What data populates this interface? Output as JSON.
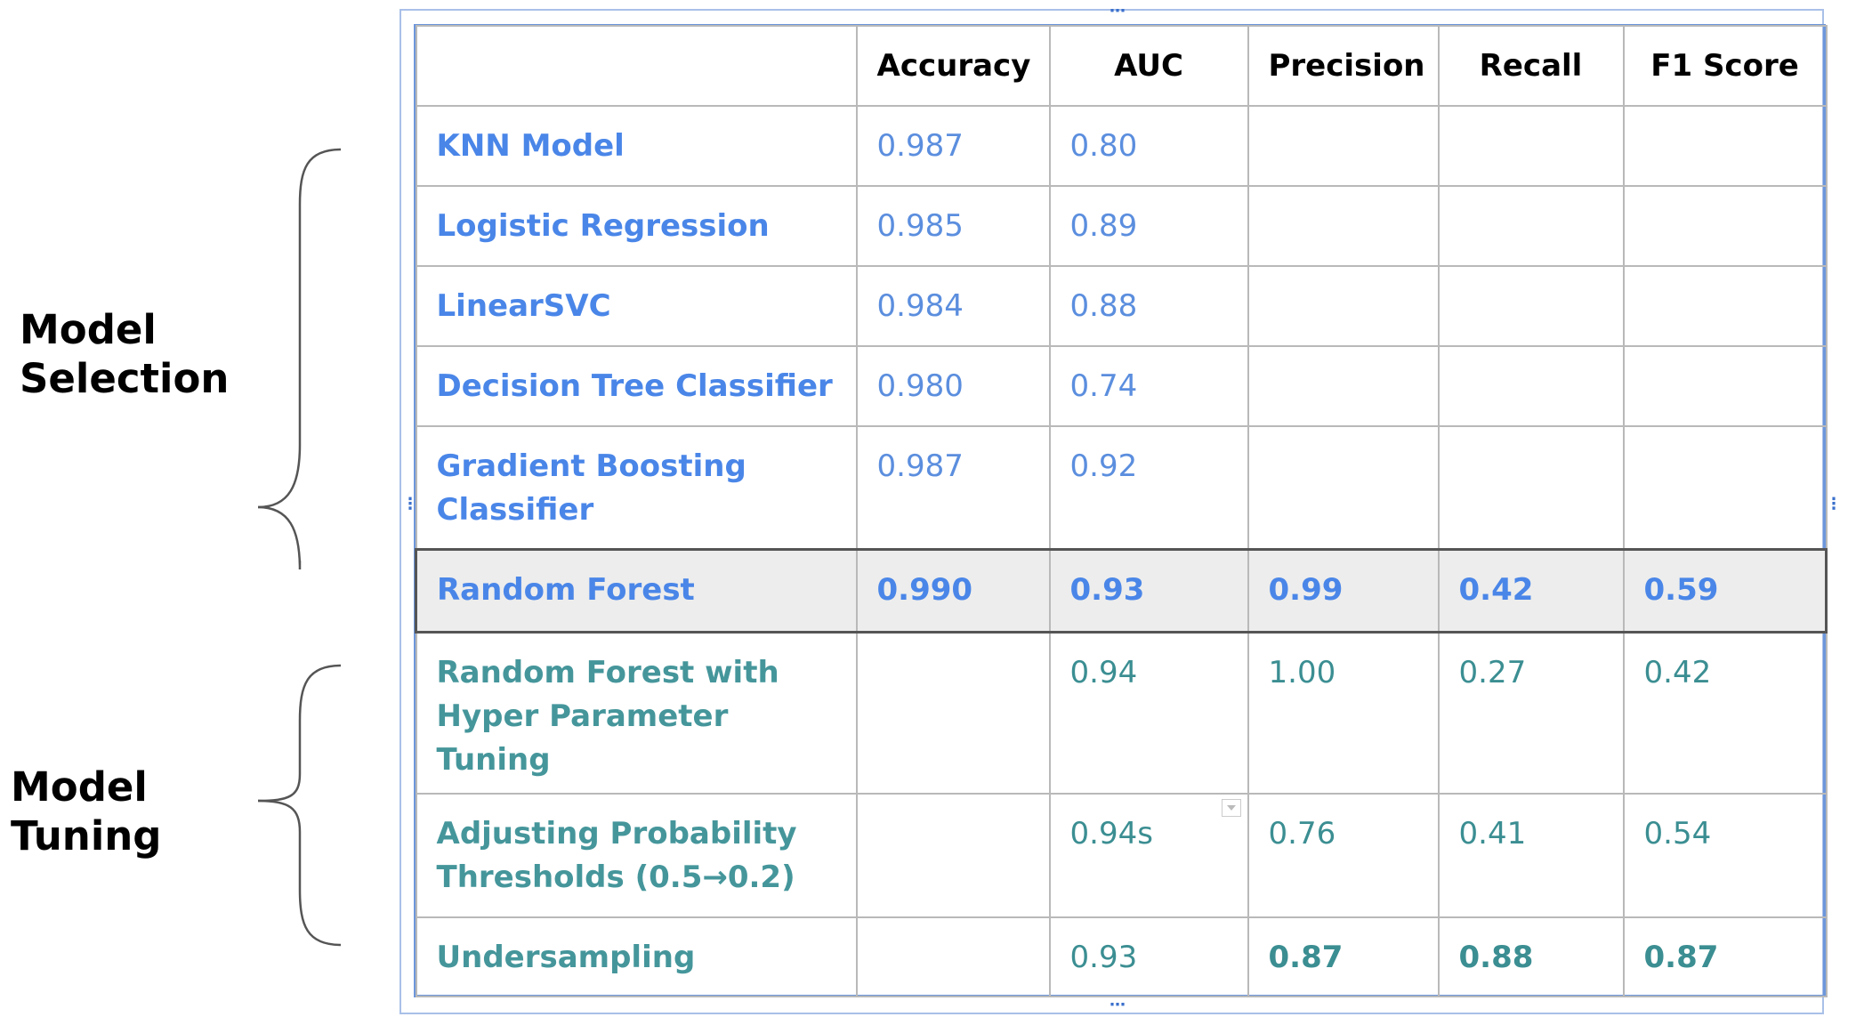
{
  "groups": {
    "selection": {
      "line1": "Model",
      "line2": "Selection"
    },
    "tuning": {
      "line1": "Model",
      "line2": "Tuning"
    }
  },
  "table": {
    "columns": [
      "",
      "Accuracy",
      "AUC",
      "Precision",
      "Recall",
      "F1 Score"
    ],
    "rows": [
      {
        "name": [
          "KNN Model"
        ],
        "group": "selection",
        "accuracy": "0.987",
        "auc": "0.80",
        "precision": "",
        "recall": "",
        "f1": ""
      },
      {
        "name": [
          "Logistic Regression"
        ],
        "group": "selection",
        "accuracy": "0.985",
        "auc": "0.89",
        "precision": "",
        "recall": "",
        "f1": ""
      },
      {
        "name": [
          "LinearSVC"
        ],
        "group": "selection",
        "accuracy": "0.984",
        "auc": "0.88",
        "precision": "",
        "recall": "",
        "f1": ""
      },
      {
        "name": [
          "Decision Tree Classifier"
        ],
        "group": "selection",
        "accuracy": "0.980",
        "auc": "0.74",
        "precision": "",
        "recall": "",
        "f1": ""
      },
      {
        "name": [
          "Gradient Boosting",
          "Classifier"
        ],
        "group": "selection",
        "accuracy": "0.987",
        "auc": "0.92",
        "precision": "",
        "recall": "",
        "f1": ""
      },
      {
        "name": [
          "Random Forest"
        ],
        "group": "selection",
        "accuracy": "0.990",
        "auc": "0.93",
        "precision": "0.99",
        "recall": "0.42",
        "f1": "0.59",
        "highlight": true
      },
      {
        "name": [
          "Random Forest with",
          "Hyper Parameter Tuning"
        ],
        "group": "tuning",
        "accuracy": "",
        "auc": "0.94",
        "precision": "1.00",
        "recall": "0.27",
        "f1": "0.42"
      },
      {
        "name": [
          "Adjusting Probability",
          "Thresholds (0.5→0.2)"
        ],
        "group": "tuning",
        "accuracy": "",
        "auc": "0.94s",
        "precision": "0.76",
        "recall": "0.41",
        "f1": "0.54"
      },
      {
        "name": [
          "Undersampling"
        ],
        "group": "tuning",
        "accuracy": "",
        "auc": "0.93",
        "precision": "0.87",
        "recall": "0.88",
        "f1": "0.87",
        "bold_metrics": true
      }
    ]
  }
}
